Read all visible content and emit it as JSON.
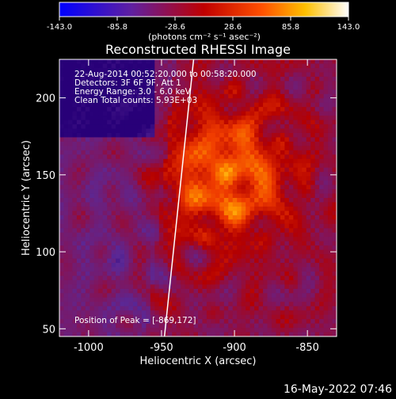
{
  "colorbar": {
    "min": -143.0,
    "max": 143.0,
    "tick_labels": [
      "-143.0",
      "-85.8",
      "-28.6",
      "28.6",
      "85.8",
      "143.0"
    ],
    "unit_label": "(photons cm⁻² s⁻¹ asec⁻²)"
  },
  "chart_data": {
    "type": "heatmap",
    "title": "Reconstructed RHESSI Image",
    "xlabel": "Heliocentric X (arcsec)",
    "ylabel": "Heliocentric Y (arcsec)",
    "xlim": [
      -1020,
      -830
    ],
    "ylim": [
      45,
      225
    ],
    "x_ticks": [
      -1000,
      -950,
      -900,
      -850
    ],
    "y_ticks": [
      50,
      100,
      150,
      200
    ],
    "x_tick_labels": [
      "-1000",
      "-950",
      "-900",
      "-850"
    ],
    "y_tick_labels": [
      "50",
      "100",
      "150",
      "200"
    ],
    "colormap": "hot (blue-purple-red-orange-yellow-white)",
    "peak": [
      -869,
      172
    ],
    "limb_line": [
      [
        -948,
        45
      ],
      [
        -928,
        225
      ]
    ],
    "annotations": [
      "22-Aug-2014 00:52:20.000 to 00:58:20.000",
      "Detectors: 3F 6F 9F, Att 1",
      "Energy Range: 3.0 - 6.0 keV",
      "Clean     Total counts: 5.93E+03"
    ],
    "peak_label": "Position of Peak = [-869,172]"
  },
  "timestamp": "16-May-2022 07:46"
}
